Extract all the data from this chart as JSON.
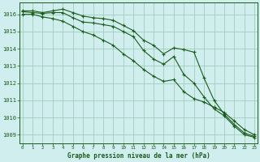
{
  "xlabel": "Graphe pression niveau de la mer (hPa)",
  "ylim": [
    1008.5,
    1016.7
  ],
  "xlim": [
    -0.3,
    23.3
  ],
  "yticks": [
    1009,
    1010,
    1011,
    1012,
    1013,
    1014,
    1015,
    1016
  ],
  "xticks": [
    0,
    1,
    2,
    3,
    4,
    5,
    6,
    7,
    8,
    9,
    10,
    11,
    12,
    13,
    14,
    15,
    16,
    17,
    18,
    19,
    20,
    21,
    22,
    23
  ],
  "background_color": "#d0eeee",
  "grid_color": "#a0ccbb",
  "line_color": "#1a5c1a",
  "series1": [
    1016.2,
    1016.2,
    1016.1,
    1016.2,
    1016.3,
    1016.1,
    1015.9,
    1015.8,
    1015.75,
    1015.65,
    1015.35,
    1015.05,
    1014.5,
    1014.2,
    1013.7,
    1014.05,
    1013.95,
    1013.8,
    1012.3,
    1011.0,
    1010.2,
    1009.6,
    1009.1,
    1008.9
  ],
  "series2": [
    1016.15,
    1016.1,
    1016.05,
    1016.1,
    1016.1,
    1015.8,
    1015.55,
    1015.5,
    1015.4,
    1015.3,
    1015.0,
    1014.7,
    1013.9,
    1013.4,
    1013.1,
    1013.55,
    1012.5,
    1012.0,
    1011.2,
    1010.5,
    1010.1,
    1009.5,
    1009.0,
    1008.85
  ],
  "series3": [
    1016.0,
    1016.0,
    1015.85,
    1015.75,
    1015.6,
    1015.3,
    1015.0,
    1014.8,
    1014.5,
    1014.2,
    1013.7,
    1013.3,
    1012.8,
    1012.4,
    1012.1,
    1012.2,
    1011.5,
    1011.1,
    1010.9,
    1010.6,
    1010.3,
    1009.8,
    1009.3,
    1009.0
  ]
}
